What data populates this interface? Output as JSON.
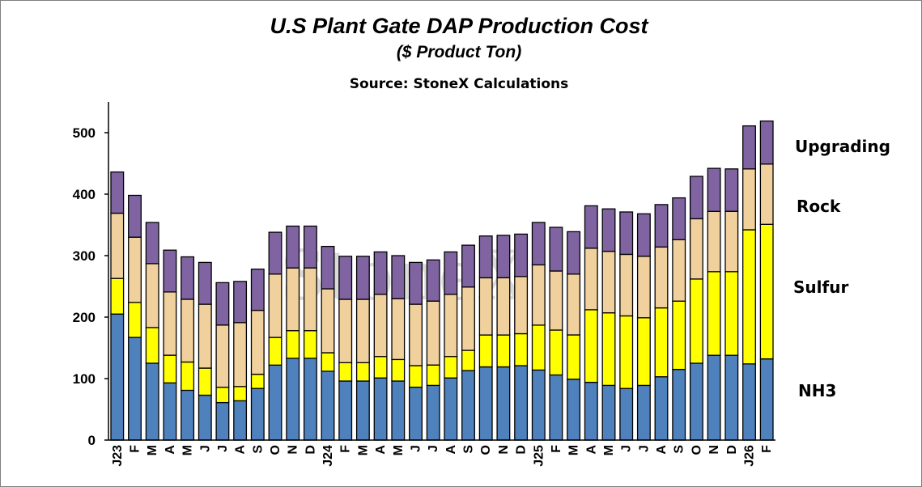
{
  "chart_data": {
    "type": "bar",
    "stacked": true,
    "title": "U.S Plant Gate DAP Production Cost",
    "subtitle": "($ Product Ton)",
    "source": "Source: StoneX Calculations",
    "xlabel": "",
    "ylabel": "",
    "ylim": [
      0,
      550
    ],
    "yticks": [
      0,
      100,
      200,
      300,
      400,
      500
    ],
    "categories": [
      "J23",
      "F",
      "M",
      "A",
      "M",
      "J",
      "J",
      "A",
      "S",
      "O",
      "N",
      "D",
      "J24",
      "F",
      "M",
      "A",
      "M",
      "J",
      "J",
      "A",
      "S",
      "O",
      "N",
      "D",
      "J25",
      "F",
      "M",
      "A",
      "M",
      "J",
      "J",
      "A",
      "S",
      "O",
      "N",
      "D",
      "J26",
      "F"
    ],
    "series": [
      {
        "name": "NH3",
        "color": "#4f81bd",
        "values": [
          205,
          167,
          125,
          93,
          81,
          73,
          61,
          64,
          84,
          122,
          133,
          133,
          112,
          96,
          96,
          101,
          96,
          86,
          89,
          101,
          113,
          119,
          119,
          121,
          114,
          106,
          99,
          94,
          89,
          84,
          89,
          103,
          115,
          125,
          138,
          138,
          124,
          132
        ]
      },
      {
        "name": "Sulfur",
        "color": "#ffff00",
        "values": [
          58,
          57,
          58,
          45,
          46,
          44,
          25,
          23,
          23,
          45,
          45,
          45,
          30,
          30,
          30,
          35,
          35,
          35,
          33,
          35,
          33,
          52,
          52,
          52,
          73,
          73,
          72,
          118,
          118,
          118,
          110,
          112,
          111,
          137,
          136,
          136,
          218,
          219
        ]
      },
      {
        "name": "Rock",
        "color": "#f0d09c",
        "values": [
          106,
          106,
          104,
          103,
          102,
          104,
          101,
          104,
          104,
          103,
          102,
          102,
          104,
          103,
          103,
          101,
          99,
          100,
          104,
          101,
          103,
          93,
          93,
          93,
          98,
          96,
          99,
          100,
          100,
          100,
          100,
          99,
          100,
          98,
          98,
          98,
          99,
          98
        ]
      },
      {
        "name": "Upgrading",
        "color": "#8064a2",
        "values": [
          67,
          68,
          67,
          68,
          69,
          68,
          69,
          67,
          67,
          68,
          68,
          68,
          69,
          70,
          70,
          69,
          70,
          68,
          67,
          69,
          68,
          68,
          69,
          69,
          69,
          71,
          69,
          69,
          69,
          69,
          69,
          69,
          68,
          69,
          70,
          69,
          70,
          70
        ]
      }
    ],
    "legend_placement": "right (labels aligned with stack segments)",
    "grid": false,
    "watermark": "StoneX"
  }
}
